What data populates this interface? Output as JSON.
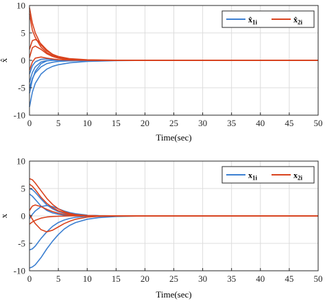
{
  "chart_data": [
    {
      "type": "line",
      "xlabel": "Time(sec)",
      "ylabel": "x̂",
      "xlim": [
        0,
        50
      ],
      "ylim": [
        -10,
        10
      ],
      "xticks": [
        "0",
        "5",
        "10",
        "15",
        "20",
        "25",
        "30",
        "35",
        "40",
        "45",
        "50"
      ],
      "yticks": [
        "10",
        "5",
        "0",
        "-5",
        "-10"
      ],
      "grid": true,
      "legend_position": "top-right",
      "legend": [
        {
          "label": "x̂",
          "sub": "1i",
          "color": "#3b7fd1"
        },
        {
          "label": "x̂",
          "sub": "2i",
          "color": "#d9421d"
        }
      ],
      "series": [
        {
          "group": "1i",
          "x": [
            0,
            0.5,
            1,
            2,
            3,
            4,
            5,
            7,
            10,
            15,
            20,
            30,
            40,
            50
          ],
          "y": [
            -8.5,
            -5.8,
            -4.2,
            -2.5,
            -1.6,
            -1.1,
            -0.8,
            -0.45,
            -0.2,
            -0.05,
            -0.01,
            0,
            0,
            0
          ]
        },
        {
          "group": "1i",
          "x": [
            0,
            0.5,
            1,
            2,
            3,
            4,
            5,
            7,
            10,
            15,
            20,
            30,
            40,
            50
          ],
          "y": [
            -6.0,
            -3.5,
            -2.0,
            -0.6,
            -0.1,
            0.0,
            0.0,
            0,
            0,
            0,
            0,
            0,
            0,
            0
          ]
        },
        {
          "group": "1i",
          "x": [
            0,
            0.5,
            1,
            2,
            3,
            4,
            5,
            7,
            10,
            15,
            20,
            30,
            40,
            50
          ],
          "y": [
            -5.0,
            -3.3,
            -2.3,
            -1.2,
            -0.6,
            -0.35,
            -0.2,
            -0.1,
            -0.05,
            0,
            0,
            0,
            0,
            0
          ]
        },
        {
          "group": "1i",
          "x": [
            0,
            0.5,
            1,
            2,
            3,
            4,
            5,
            7,
            10,
            15,
            20,
            30,
            40,
            50
          ],
          "y": [
            -4.0,
            -2.2,
            -1.2,
            -0.3,
            -0.05,
            0,
            0,
            0,
            0,
            0,
            0,
            0,
            0,
            0
          ]
        },
        {
          "group": "1i",
          "x": [
            0,
            0.5,
            1,
            2,
            3,
            4,
            5,
            7,
            10,
            15,
            20,
            30,
            40,
            50
          ],
          "y": [
            -2.5,
            -1.0,
            -0.3,
            0.2,
            0.25,
            0.15,
            0.08,
            0.02,
            0,
            0,
            0,
            0,
            0,
            0
          ]
        },
        {
          "group": "2i",
          "x": [
            0,
            0.5,
            1,
            2,
            3,
            4,
            5,
            7,
            10,
            15,
            20,
            30,
            40,
            50
          ],
          "y": [
            9.6,
            6.8,
            5.0,
            2.8,
            1.7,
            1.1,
            0.7,
            0.3,
            0.1,
            0.02,
            0,
            0,
            0,
            0
          ]
        },
        {
          "group": "2i",
          "x": [
            0,
            0.5,
            1,
            2,
            3,
            4,
            5,
            7,
            10,
            15,
            20,
            30,
            40,
            50
          ],
          "y": [
            8.5,
            5.5,
            4.2,
            2.4,
            1.4,
            0.9,
            0.55,
            0.2,
            0.05,
            0,
            0,
            0,
            0,
            0
          ]
        },
        {
          "group": "2i",
          "x": [
            0,
            0.5,
            1,
            1.5,
            2,
            3,
            4,
            5,
            7,
            10,
            15,
            20,
            30,
            50
          ],
          "y": [
            2.0,
            3.6,
            3.8,
            3.5,
            3.0,
            1.9,
            1.1,
            0.6,
            0.15,
            0.02,
            0,
            0,
            0,
            0
          ]
        },
        {
          "group": "2i",
          "x": [
            0,
            0.5,
            1,
            2,
            3,
            4,
            5,
            7,
            10,
            15,
            20,
            30,
            40,
            50
          ],
          "y": [
            0.5,
            2.3,
            2.6,
            2.0,
            1.2,
            0.7,
            0.4,
            0.12,
            0.02,
            0,
            0,
            0,
            0,
            0
          ]
        },
        {
          "group": "2i",
          "x": [
            0,
            0.5,
            1,
            2,
            3,
            4,
            5,
            7,
            10,
            15,
            20,
            30,
            40,
            50
          ],
          "y": [
            -1.8,
            -0.3,
            0.4,
            0.6,
            0.4,
            0.25,
            0.12,
            0.03,
            0,
            0,
            0,
            0,
            0,
            0
          ]
        }
      ]
    },
    {
      "type": "line",
      "xlabel": "Time(sec)",
      "ylabel": "x",
      "xlim": [
        0,
        50
      ],
      "ylim": [
        -10,
        10
      ],
      "xticks": [
        "0",
        "5",
        "10",
        "15",
        "20",
        "25",
        "30",
        "35",
        "40",
        "45",
        "50"
      ],
      "yticks": [
        "10",
        "5",
        "0",
        "-5",
        "-10"
      ],
      "grid": true,
      "legend_position": "top-right",
      "legend": [
        {
          "label": "x",
          "sub": "1i",
          "color": "#3b7fd1"
        },
        {
          "label": "x",
          "sub": "2i",
          "color": "#d9421d"
        }
      ],
      "series": [
        {
          "group": "1i",
          "x": [
            0,
            0.5,
            1,
            2,
            3,
            4,
            5,
            6,
            7,
            8,
            10,
            12,
            15,
            20,
            30,
            50
          ],
          "y": [
            -9.5,
            -9.3,
            -8.9,
            -7.6,
            -6.0,
            -4.6,
            -3.4,
            -2.4,
            -1.7,
            -1.2,
            -0.6,
            -0.3,
            -0.1,
            0,
            0,
            0
          ]
        },
        {
          "group": "1i",
          "x": [
            0,
            0.5,
            1,
            2,
            3,
            4,
            5,
            6,
            7,
            8,
            10,
            12,
            15,
            20,
            30,
            50
          ],
          "y": [
            -6.2,
            -6.0,
            -5.5,
            -4.1,
            -2.9,
            -1.9,
            -1.2,
            -0.75,
            -0.45,
            -0.25,
            -0.08,
            -0.02,
            0,
            0,
            0,
            0
          ]
        },
        {
          "group": "1i",
          "x": [
            0,
            0.5,
            1,
            2,
            3,
            4,
            5,
            6,
            7,
            8,
            10,
            12,
            15,
            20,
            30,
            50
          ],
          "y": [
            5.0,
            4.8,
            4.3,
            3.1,
            2.0,
            1.3,
            0.8,
            0.5,
            0.3,
            0.18,
            0.06,
            0.02,
            0,
            0,
            0,
            0
          ]
        },
        {
          "group": "1i",
          "x": [
            0,
            0.5,
            1,
            2,
            3,
            4,
            5,
            6,
            7,
            8,
            10,
            12,
            15,
            20,
            30,
            50
          ],
          "y": [
            4.0,
            3.6,
            3.0,
            1.8,
            1.0,
            0.55,
            0.3,
            0.15,
            0.08,
            0.04,
            0.01,
            0,
            0,
            0,
            0,
            0
          ]
        },
        {
          "group": "1i",
          "x": [
            0,
            0.5,
            1,
            2,
            3,
            4,
            5,
            6,
            7,
            8,
            10,
            12,
            15,
            20,
            30,
            50
          ],
          "y": [
            -0.5,
            0.3,
            0.9,
            1.7,
            1.9,
            1.7,
            1.3,
            0.9,
            0.6,
            0.4,
            0.15,
            0.05,
            0.01,
            0,
            0,
            0
          ]
        },
        {
          "group": "2i",
          "x": [
            0,
            0.5,
            1,
            2,
            3,
            4,
            5,
            6,
            7,
            8,
            10,
            12,
            15,
            20,
            30,
            50
          ],
          "y": [
            6.8,
            6.6,
            6.0,
            4.6,
            3.2,
            2.1,
            1.3,
            0.8,
            0.45,
            0.25,
            0.07,
            0.02,
            0,
            0,
            0,
            0
          ]
        },
        {
          "group": "2i",
          "x": [
            0,
            0.5,
            1,
            2,
            3,
            4,
            5,
            6,
            7,
            8,
            10,
            12,
            15,
            20,
            30,
            50
          ],
          "y": [
            5.8,
            5.4,
            4.8,
            3.4,
            2.3,
            1.5,
            0.95,
            0.6,
            0.35,
            0.2,
            0.06,
            0.02,
            0,
            0,
            0,
            0
          ]
        },
        {
          "group": "2i",
          "x": [
            0,
            0.5,
            1,
            2,
            3,
            4,
            5,
            6,
            7,
            8,
            10,
            12,
            15,
            20,
            30,
            50
          ],
          "y": [
            1.0,
            1.8,
            2.0,
            1.7,
            1.2,
            0.8,
            0.5,
            0.3,
            0.18,
            0.1,
            0.03,
            0.01,
            0,
            0,
            0,
            0
          ]
        },
        {
          "group": "2i",
          "x": [
            0,
            0.5,
            1,
            2,
            3,
            4,
            5,
            6,
            7,
            8,
            10,
            12,
            15,
            20,
            30,
            50
          ],
          "y": [
            0.3,
            -0.6,
            -1.4,
            -2.5,
            -2.9,
            -2.6,
            -2.0,
            -1.4,
            -0.95,
            -0.6,
            -0.22,
            -0.07,
            -0.01,
            0,
            0,
            0
          ]
        },
        {
          "group": "2i",
          "x": [
            0,
            0.5,
            1,
            2,
            3,
            4,
            5,
            6,
            7,
            8,
            10,
            12,
            15,
            20,
            30,
            50
          ],
          "y": [
            -1.5,
            -1.1,
            -0.8,
            -0.4,
            -0.2,
            -0.1,
            -0.05,
            -0.02,
            0,
            0,
            0,
            0,
            0,
            0,
            0,
            0
          ]
        }
      ]
    }
  ]
}
